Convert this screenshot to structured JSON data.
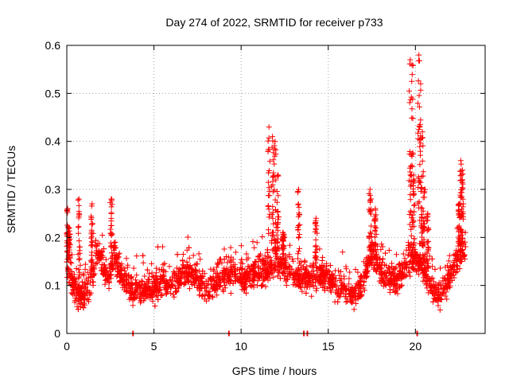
{
  "chart_data": {
    "type": "scatter",
    "title": "Day 274 of 2022, SRMTID for receiver p733",
    "xlabel": "GPS time / hours",
    "ylabel": "SRMTID / TECUs",
    "xlim": [
      0,
      24
    ],
    "ylim": [
      0,
      0.6
    ],
    "x_ticks": [
      0,
      5,
      10,
      15,
      20
    ],
    "x_tick_labels": [
      "0",
      "5",
      "10",
      "15",
      "20"
    ],
    "y_ticks": [
      0,
      0.1,
      0.2,
      0.3,
      0.4,
      0.5,
      0.6
    ],
    "y_tick_labels": [
      "0",
      "0.1",
      "0.2",
      "0.3",
      "0.4",
      "0.5",
      "0.6"
    ],
    "grid": true,
    "marker": "plus",
    "color": "#ff0000",
    "x_end": 22.9,
    "trend": [
      [
        0.0,
        0.15
      ],
      [
        0.3,
        0.11
      ],
      [
        0.6,
        0.08
      ],
      [
        1.0,
        0.08
      ],
      [
        1.3,
        0.1
      ],
      [
        1.6,
        0.15
      ],
      [
        1.8,
        0.17
      ],
      [
        2.1,
        0.14
      ],
      [
        2.4,
        0.11
      ],
      [
        2.7,
        0.17
      ],
      [
        3.0,
        0.13
      ],
      [
        3.5,
        0.1
      ],
      [
        4.0,
        0.09
      ],
      [
        4.5,
        0.09
      ],
      [
        5.0,
        0.09
      ],
      [
        5.5,
        0.11
      ],
      [
        6.0,
        0.1
      ],
      [
        6.5,
        0.12
      ],
      [
        7.0,
        0.13
      ],
      [
        7.5,
        0.11
      ],
      [
        8.0,
        0.09
      ],
      [
        8.5,
        0.11
      ],
      [
        9.0,
        0.12
      ],
      [
        9.5,
        0.13
      ],
      [
        10.0,
        0.11
      ],
      [
        10.5,
        0.12
      ],
      [
        11.0,
        0.13
      ],
      [
        11.5,
        0.13
      ],
      [
        12.0,
        0.15
      ],
      [
        12.5,
        0.14
      ],
      [
        13.0,
        0.12
      ],
      [
        13.5,
        0.11
      ],
      [
        14.0,
        0.12
      ],
      [
        14.5,
        0.12
      ],
      [
        15.0,
        0.12
      ],
      [
        15.5,
        0.1
      ],
      [
        16.0,
        0.09
      ],
      [
        16.5,
        0.08
      ],
      [
        17.0,
        0.11
      ],
      [
        17.5,
        0.17
      ],
      [
        18.0,
        0.13
      ],
      [
        18.5,
        0.11
      ],
      [
        19.0,
        0.11
      ],
      [
        19.5,
        0.14
      ],
      [
        20.0,
        0.16
      ],
      [
        20.5,
        0.13
      ],
      [
        21.0,
        0.09
      ],
      [
        21.5,
        0.08
      ],
      [
        22.0,
        0.12
      ],
      [
        22.5,
        0.16
      ],
      [
        22.9,
        0.18
      ]
    ],
    "spikes": [
      [
        0.05,
        0.26
      ],
      [
        0.15,
        0.22
      ],
      [
        0.7,
        0.28
      ],
      [
        1.45,
        0.27
      ],
      [
        2.55,
        0.28
      ],
      [
        11.6,
        0.43
      ],
      [
        11.8,
        0.41
      ],
      [
        11.95,
        0.4
      ],
      [
        12.1,
        0.33
      ],
      [
        12.4,
        0.21
      ],
      [
        13.3,
        0.3
      ],
      [
        14.3,
        0.24
      ],
      [
        17.4,
        0.3
      ],
      [
        17.7,
        0.26
      ],
      [
        19.7,
        0.57
      ],
      [
        19.8,
        0.56
      ],
      [
        19.9,
        0.33
      ],
      [
        20.2,
        0.58
      ],
      [
        20.3,
        0.52
      ],
      [
        20.4,
        0.42
      ],
      [
        20.5,
        0.3
      ],
      [
        20.7,
        0.25
      ],
      [
        22.6,
        0.36
      ],
      [
        22.7,
        0.34
      ],
      [
        22.5,
        0.27
      ]
    ],
    "spike_halfwidth_hours": 0.12,
    "zero_markers": [
      3.8,
      9.3,
      13.6,
      13.8,
      20.1
    ]
  }
}
